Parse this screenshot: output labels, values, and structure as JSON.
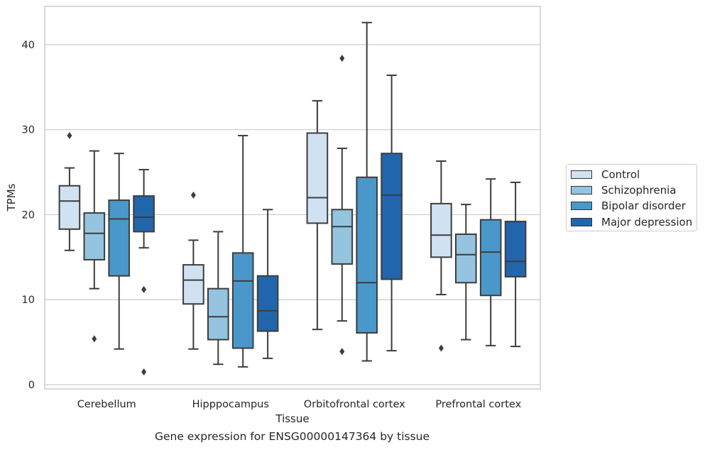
{
  "caption": "Gene expression for ENSG00000147364 by tissue",
  "chart_data": {
    "type": "box",
    "xlabel": "Tissue",
    "ylabel": "TPMs",
    "ylim": [
      -0.5,
      44.5
    ],
    "yticks": [
      0,
      10,
      20,
      30,
      40
    ],
    "grid": "horizontal",
    "legend_position": "right",
    "categories": [
      "Cerebellum",
      "Hipppocampus",
      "Orbitofrontal cortex",
      "Prefrontal cortex"
    ],
    "series": [
      {
        "name": "Control",
        "color": "#d0e1f2",
        "boxes": [
          {
            "q1": 18.3,
            "median": 21.6,
            "q3": 23.4,
            "whisker_low": 15.8,
            "whisker_high": 25.5,
            "outliers": [
              29.3
            ]
          },
          {
            "q1": 9.5,
            "median": 12.3,
            "q3": 14.1,
            "whisker_low": 4.2,
            "whisker_high": 17.0,
            "outliers": [
              22.3
            ]
          },
          {
            "q1": 19.0,
            "median": 22.0,
            "q3": 29.6,
            "whisker_low": 6.5,
            "whisker_high": 33.4,
            "outliers": []
          },
          {
            "q1": 15.0,
            "median": 17.6,
            "q3": 21.3,
            "whisker_low": 10.6,
            "whisker_high": 26.3,
            "outliers": [
              4.3
            ]
          }
        ]
      },
      {
        "name": "Schizophrenia",
        "color": "#94c4df",
        "boxes": [
          {
            "q1": 14.7,
            "median": 17.8,
            "q3": 20.2,
            "whisker_low": 11.3,
            "whisker_high": 27.5,
            "outliers": [
              5.4
            ]
          },
          {
            "q1": 5.3,
            "median": 8.0,
            "q3": 11.3,
            "whisker_low": 2.4,
            "whisker_high": 18.0,
            "outliers": []
          },
          {
            "q1": 14.2,
            "median": 18.6,
            "q3": 20.6,
            "whisker_low": 7.5,
            "whisker_high": 27.8,
            "outliers": [
              38.4,
              3.9
            ]
          },
          {
            "q1": 12.0,
            "median": 15.3,
            "q3": 17.7,
            "whisker_low": 5.3,
            "whisker_high": 21.2,
            "outliers": []
          }
        ]
      },
      {
        "name": "Bipolar disorder",
        "color": "#4a98c9",
        "boxes": [
          {
            "q1": 12.8,
            "median": 19.5,
            "q3": 21.7,
            "whisker_low": 4.2,
            "whisker_high": 27.2,
            "outliers": []
          },
          {
            "q1": 4.3,
            "median": 12.2,
            "q3": 15.5,
            "whisker_low": 2.1,
            "whisker_high": 29.3,
            "outliers": []
          },
          {
            "q1": 6.1,
            "median": 12.0,
            "q3": 24.4,
            "whisker_low": 2.8,
            "whisker_high": 42.6,
            "outliers": []
          },
          {
            "q1": 10.5,
            "median": 15.6,
            "q3": 19.4,
            "whisker_low": 4.6,
            "whisker_high": 24.2,
            "outliers": []
          }
        ]
      },
      {
        "name": "Major depression",
        "color": "#2166ac",
        "boxes": [
          {
            "q1": 18.0,
            "median": 19.7,
            "q3": 22.2,
            "whisker_low": 16.1,
            "whisker_high": 25.3,
            "outliers": [
              11.2,
              1.5
            ]
          },
          {
            "q1": 6.3,
            "median": 8.7,
            "q3": 12.8,
            "whisker_low": 3.1,
            "whisker_high": 20.6,
            "outliers": []
          },
          {
            "q1": 12.4,
            "median": 22.3,
            "q3": 27.2,
            "whisker_low": 4.0,
            "whisker_high": 36.4,
            "outliers": []
          },
          {
            "q1": 12.7,
            "median": 14.5,
            "q3": 19.2,
            "whisker_low": 4.5,
            "whisker_high": 23.8,
            "outliers": []
          }
        ]
      }
    ]
  }
}
